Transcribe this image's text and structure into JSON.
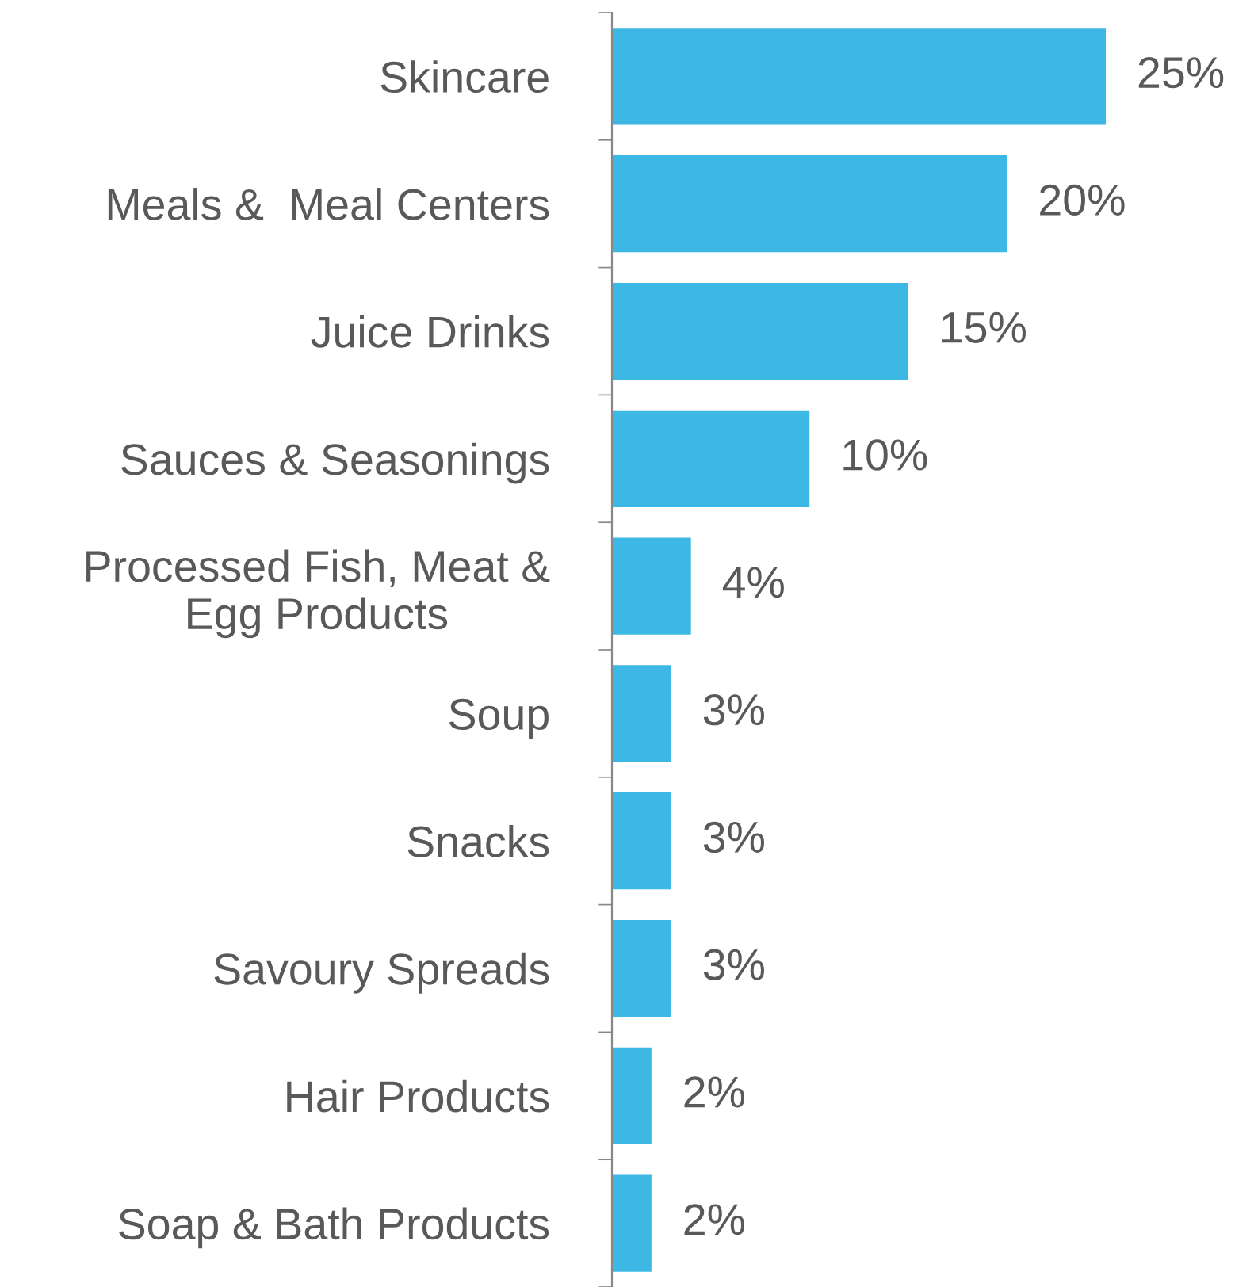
{
  "chart_data": {
    "type": "bar",
    "orientation": "horizontal",
    "data_labels": true,
    "grid": false,
    "legend": false,
    "color": "#3db8e5",
    "categories": [
      "Skincare",
      "Meals &  Meal Centers",
      "Juice Drinks",
      "Sauces & Seasonings",
      "Processed Fish, Meat &\nEgg Products",
      "Soup",
      "Snacks",
      "Savoury Spreads",
      "Hair Products",
      "Soap & Bath Products"
    ],
    "values": [
      25,
      20,
      15,
      10,
      4,
      3,
      3,
      3,
      2,
      2
    ],
    "value_labels": [
      "25%",
      "20%",
      "15%",
      "10%",
      "4%",
      "3%",
      "3%",
      "3%",
      "2%",
      "2%"
    ]
  }
}
